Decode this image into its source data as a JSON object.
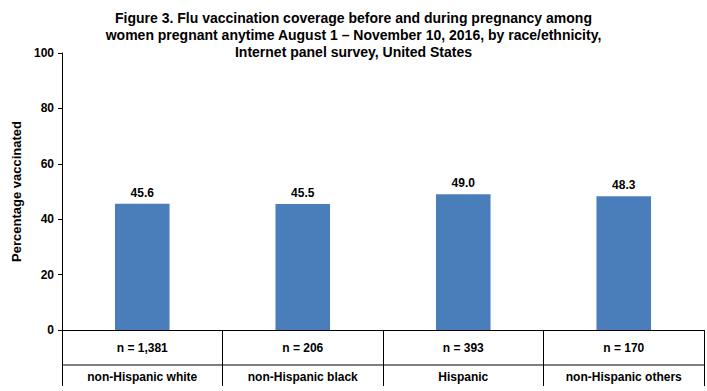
{
  "chart_data": {
    "type": "bar",
    "title": "Figure 3. Flu vaccination coverage before and during pregnancy among\nwomen pregnant anytime August 1 – November 10, 2016, by race/ethnicity,\nInternet panel survey, United States",
    "y_label": "Percentage vaccinated",
    "categories": [
      "non-Hispanic white",
      "non-Hispanic black",
      "Hispanic",
      "non-Hispanic others"
    ],
    "sample_size_labels": [
      "n = 1,381",
      "n = 206",
      "n = 393",
      "n = 170"
    ],
    "values": [
      45.6,
      45.5,
      49.0,
      48.3
    ],
    "value_labels": [
      "45.6",
      "45.5",
      "49.0",
      "48.3"
    ],
    "color": "#4a7ebb",
    "ylim": [
      0,
      100
    ],
    "yticks": [
      0,
      20,
      40,
      60,
      80,
      100
    ],
    "grid": false,
    "data_labels": true
  }
}
